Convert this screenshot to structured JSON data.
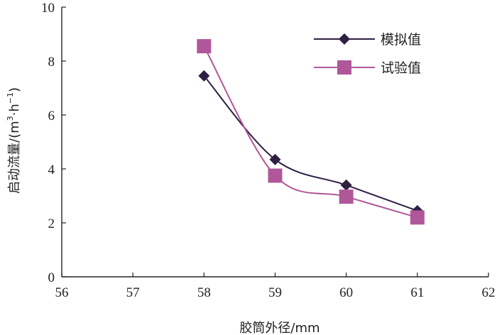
{
  "chart_data": {
    "type": "line",
    "xlabel": "胶筒外径/mm",
    "ylabel": "启动流量/(m³·h⁻¹)",
    "ylabel_parts": {
      "main": "启动流量/(m",
      "sup1": "3",
      "mid": "·h",
      "sup2": "−1",
      "end": ")"
    },
    "xlim": [
      56,
      62
    ],
    "ylim": [
      0,
      10
    ],
    "xticks": [
      56,
      57,
      58,
      59,
      60,
      61,
      62
    ],
    "yticks": [
      0,
      2,
      4,
      6,
      8,
      10
    ],
    "x": [
      58,
      59,
      60,
      61
    ],
    "series": [
      {
        "name": "模拟值",
        "values": [
          7.45,
          4.35,
          3.4,
          2.45
        ],
        "color": "#2e1f43",
        "marker": "diamond"
      },
      {
        "name": "试验值",
        "values": [
          8.55,
          3.75,
          2.97,
          2.2
        ],
        "color": "#b0579a",
        "marker": "square"
      }
    ],
    "legend_position": "top-right",
    "grid": false
  }
}
